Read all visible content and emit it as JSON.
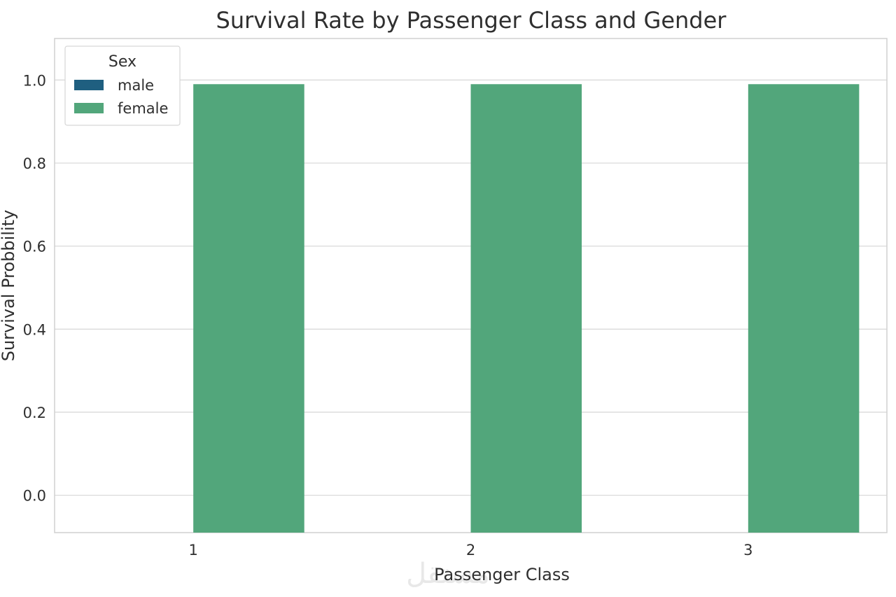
{
  "chart_data": {
    "type": "bar",
    "title": "Survival Rate by Passenger Class and Gender",
    "xlabel": "Passenger Class",
    "ylabel": "Survival Probbility",
    "categories": [
      "1",
      "2",
      "3"
    ],
    "series": [
      {
        "name": "male",
        "color": "#1f5f80",
        "values": [
          0,
          0,
          0
        ]
      },
      {
        "name": "female",
        "color": "#52a67b",
        "values": [
          0.99,
          0.99,
          0.99
        ]
      }
    ],
    "ylim": [
      -0.09,
      1.1
    ],
    "yticks": [
      0.0,
      0.2,
      0.4,
      0.6,
      0.8,
      1.0
    ],
    "grid": true,
    "legend": {
      "title": "Sex",
      "position": "top-left"
    }
  },
  "watermark": {
    "text": "مستقل",
    "color": "#e6e6e6"
  }
}
